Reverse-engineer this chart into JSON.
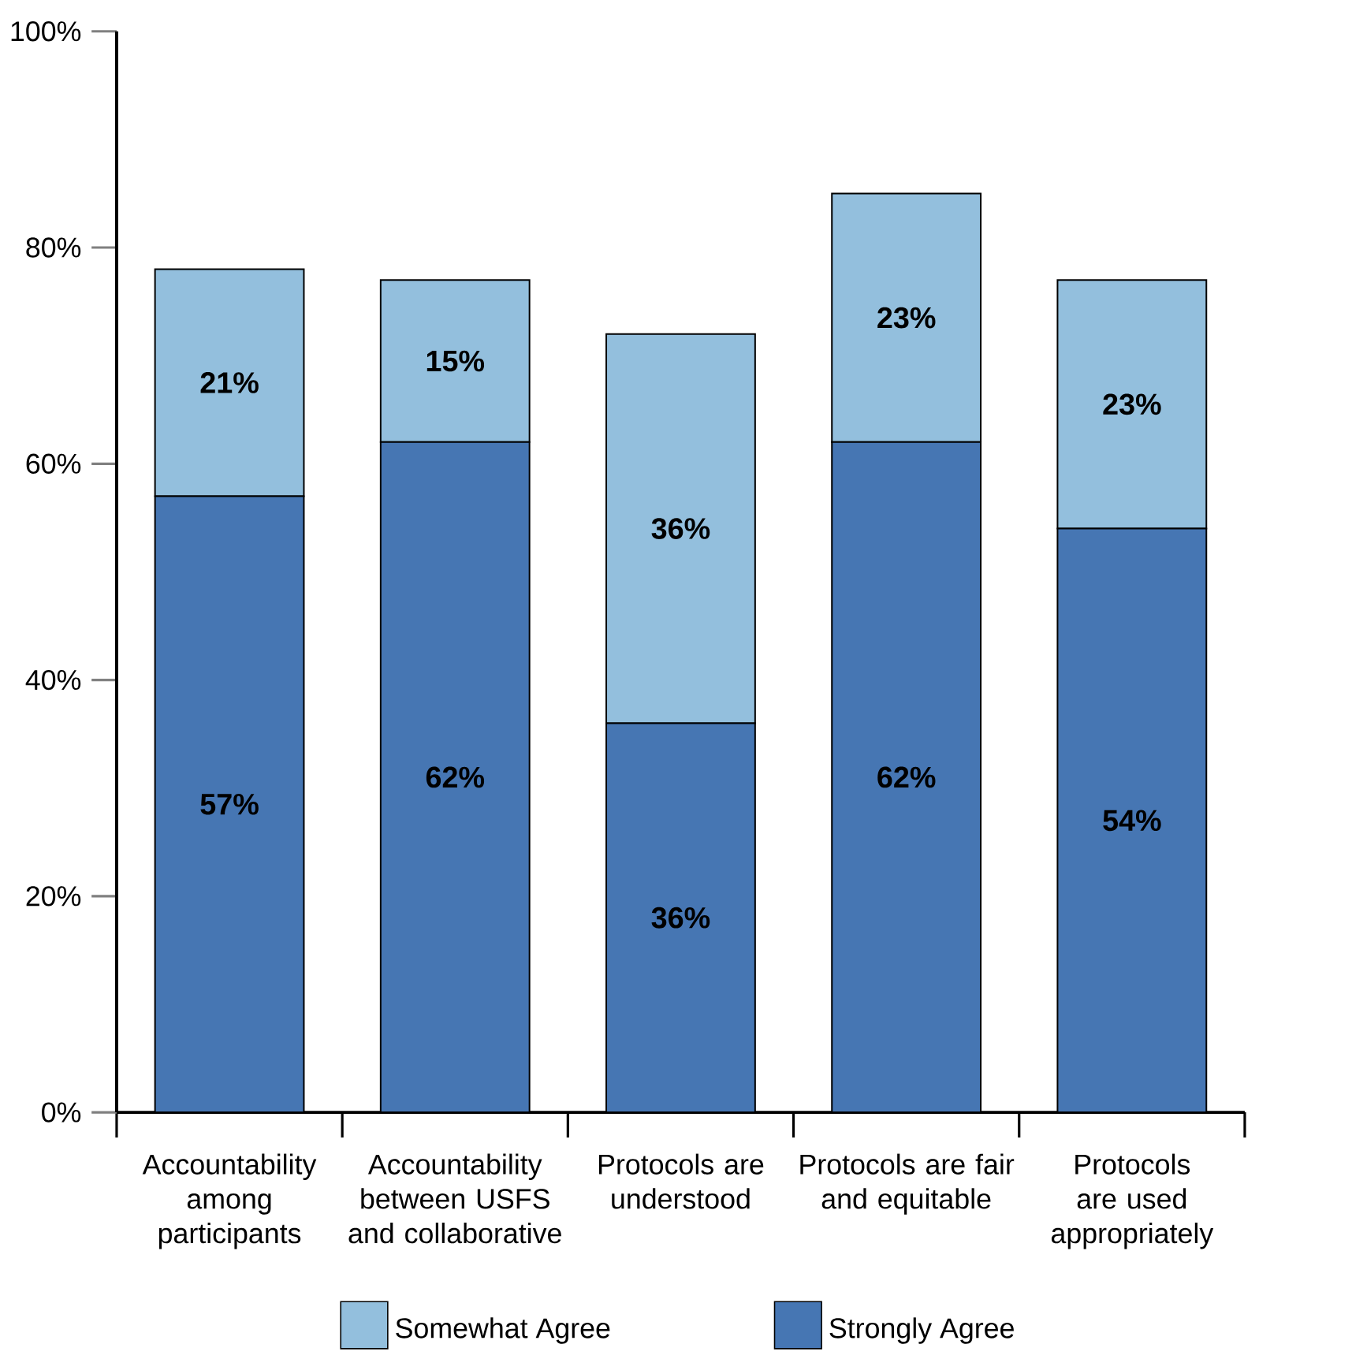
{
  "chart_data": {
    "type": "bar",
    "stacked": true,
    "categories": [
      "Accountability among participants",
      "Accountability between USFS and collaborative",
      "Protocols are understood",
      "Protocols are fair and equitable",
      "Protocols are used appropriately"
    ],
    "series": [
      {
        "name": "Strongly Agree",
        "color": "#4676b3",
        "values": [
          57,
          62,
          36,
          62,
          54
        ],
        "value_labels": [
          "57%",
          "62%",
          "36%",
          "62%",
          "54%"
        ]
      },
      {
        "name": "Somewhat Agree",
        "color": "#93bfdd",
        "values": [
          21,
          15,
          36,
          23,
          23
        ],
        "value_labels": [
          "21%",
          "15%",
          "36%",
          "23%",
          "23%"
        ]
      }
    ],
    "ylim": [
      0,
      100
    ],
    "yticks": [
      {
        "value": 0,
        "label": "0%"
      },
      {
        "value": 20,
        "label": "20%"
      },
      {
        "value": 40,
        "label": "40%"
      },
      {
        "value": 60,
        "label": "60%"
      },
      {
        "value": 80,
        "label": "80%"
      },
      {
        "value": 100,
        "label": "100%"
      }
    ],
    "grid": false,
    "legend": "bottom"
  }
}
